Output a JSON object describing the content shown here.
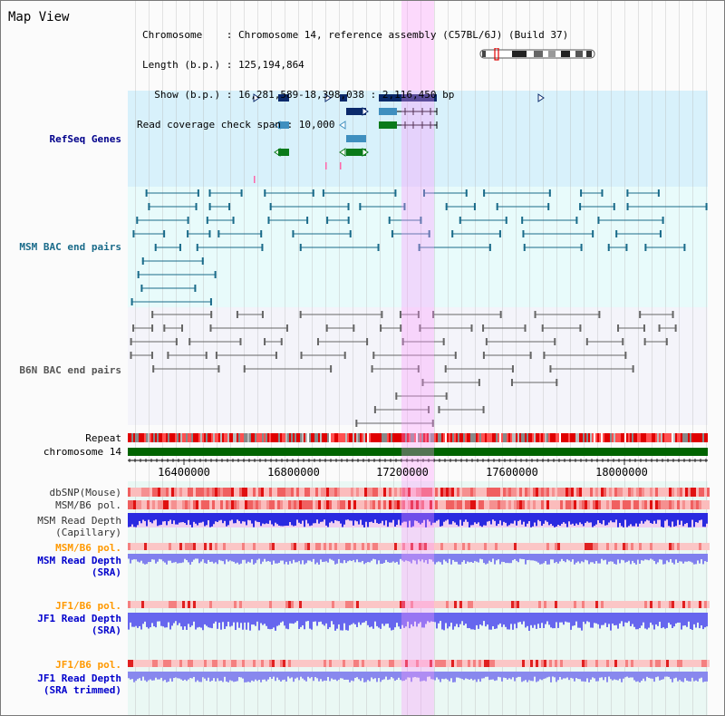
{
  "map_title": "Map View",
  "info": {
    "chromosome": "Chromosome    : Chromosome 14, reference assembly (C57BL/6J) (Build 37)",
    "length": "Length (b.p.) : 125,194,864",
    "show": "  Show (b.p.) : 16,281,589-18,398,038 : 2,116,450 bp",
    "coverage": "Read coverage check span : 10,000"
  },
  "tracks": {
    "refseq": "RefSeq Genes",
    "msm_bac": "MSM BAC end pairs",
    "b6n_bac": "B6N BAC end pairs",
    "repeat": "Repeat",
    "chromosome": "chromosome 14",
    "dbsnp": "dbSNP(Mouse)",
    "msm_b6_pol_1": "MSM/B6 pol.",
    "msm_depth_cap": "MSM Read Depth",
    "capillary": "(Capillary)",
    "msm_b6_pol_2": "MSM/B6 pol.",
    "msm_depth_sra": "MSM Read Depth",
    "sra_1": "(SRA)",
    "jf1_b6_pol_1": "JF1/B6 pol.",
    "jf1_depth_sra": "JF1 Read Depth",
    "sra_2": "(SRA)",
    "jf1_b6_pol_2": "JF1/B6 pol.",
    "jf1_depth_trim": "JF1 Read Depth",
    "sra_trimmed": "(SRA trimmed)"
  },
  "axis": {
    "ticks": [
      "16400000",
      "16800000",
      "17200000",
      "17600000",
      "18000000"
    ]
  },
  "colors": {
    "refseq_bg": "#d8f1fb",
    "msm_bg": "#e8fbfb",
    "refseq_label": "#00008b",
    "msm_label": "#1a6b8a",
    "b6n_label": "#555555",
    "orange_label": "#ff9900",
    "blue_label": "#0000cc",
    "chromosome_bar": "#006400",
    "highlight": "#ff96ff"
  }
}
